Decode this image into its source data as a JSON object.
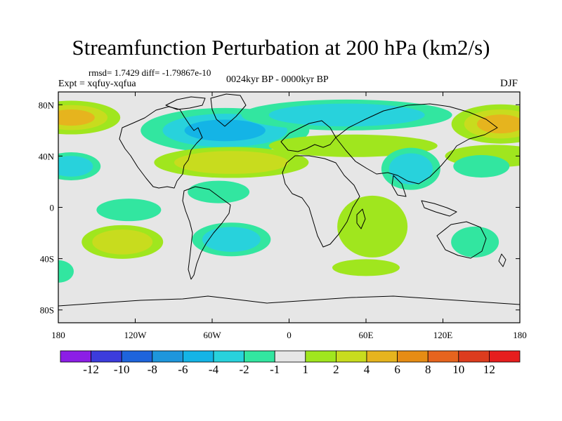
{
  "header": {
    "title": "Streamfunction Perturbation at 200 hPa (km2/s)",
    "stats": "rmsd= 1.7429 diff= -1.79867e-10",
    "experiment": "Expt = xqfuy-xqfua",
    "period": "0024kyr BP - 0000kyr BP",
    "season": "DJF"
  },
  "chart_data": {
    "type": "heatmap",
    "title": "Streamfunction Perturbation at 200 hPa (km2/s)",
    "projection": "cylindrical-equidistant",
    "xlim": [
      -180,
      180
    ],
    "ylim": [
      -90,
      90
    ],
    "x_ticks": [
      {
        "value": -180,
        "label": "180"
      },
      {
        "value": -120,
        "label": "120W"
      },
      {
        "value": -60,
        "label": "60W"
      },
      {
        "value": 0,
        "label": "0"
      },
      {
        "value": 60,
        "label": "60E"
      },
      {
        "value": 120,
        "label": "120E"
      },
      {
        "value": 180,
        "label": "180"
      }
    ],
    "y_ticks": [
      {
        "value": 80,
        "label": "80N"
      },
      {
        "value": 40,
        "label": "40N"
      },
      {
        "value": 0,
        "label": "0"
      },
      {
        "value": -40,
        "label": "40S"
      },
      {
        "value": -80,
        "label": "80S"
      }
    ],
    "colorbar": {
      "labels": [
        "-12",
        "-10",
        "-8",
        "-6",
        "-4",
        "-2",
        "-1",
        "1",
        "2",
        "4",
        "6",
        "8",
        "10",
        "12"
      ],
      "colors": [
        "#8c1ee6",
        "#3c3cdc",
        "#1e64dc",
        "#1e96dc",
        "#14b4e6",
        "#28d2dc",
        "#32e6a0",
        "#e6e6e6",
        "#a0e61e",
        "#c8dc1e",
        "#e6b41e",
        "#e68c14",
        "#e6641e",
        "#dc3c1e",
        "#e61e1e"
      ]
    },
    "fill_colors": {
      "neutral": "#e6e6e6",
      "pos1": "#a0e61e",
      "pos2": "#c8dc1e",
      "pos3": "#e6b41e",
      "pos4": "#e68c14",
      "neg1": "#32e6a0",
      "neg2": "#28d2dc",
      "neg3": "#14b4e6",
      "neg4": "#1e96dc"
    },
    "anomalies": [
      {
        "name": "north-atlantic-low",
        "sign": "negative",
        "lon": -50,
        "lat": 60,
        "peak": -6
      },
      {
        "name": "north-pacific-high",
        "sign": "positive",
        "lon": -170,
        "lat": 70,
        "peak": 6
      },
      {
        "name": "eurasia-arctic-low",
        "sign": "negative",
        "lon": 45,
        "lat": 72,
        "peak": -4
      },
      {
        "name": "east-asia-arctic-high",
        "sign": "positive",
        "lon": 165,
        "lat": 65,
        "peak": 6
      },
      {
        "name": "subtropical-atlantic-high",
        "sign": "positive",
        "lon": -45,
        "lat": 35,
        "peak": 4
      },
      {
        "name": "eurasia-midlat-high",
        "sign": "positive",
        "lon": 50,
        "lat": 48,
        "peak": 2
      },
      {
        "name": "west-pacific-midlat-high",
        "sign": "positive",
        "lon": 160,
        "lat": 40,
        "peak": 2
      },
      {
        "name": "east-pacific-low",
        "sign": "negative",
        "lon": -170,
        "lat": 32,
        "peak": -4
      },
      {
        "name": "tibet-low",
        "sign": "negative",
        "lon": 95,
        "lat": 30,
        "peak": -4
      },
      {
        "name": "west-pacific-low",
        "sign": "negative",
        "lon": 150,
        "lat": 32,
        "peak": -2
      },
      {
        "name": "south-america-low",
        "sign": "negative",
        "lon": -45,
        "lat": -25,
        "peak": -4
      },
      {
        "name": "tropical-atlantic-low",
        "sign": "negative",
        "lon": -55,
        "lat": 12,
        "peak": -2
      },
      {
        "name": "east-pacific-tropical-low",
        "sign": "negative",
        "lon": -125,
        "lat": -2,
        "peak": -2
      },
      {
        "name": "south-pacific-high",
        "sign": "positive",
        "lon": -130,
        "lat": -27,
        "peak": 4
      },
      {
        "name": "africa-high",
        "sign": "positive",
        "lon": 65,
        "lat": -15,
        "peak": 2
      },
      {
        "name": "australia-low",
        "sign": "negative",
        "lon": 145,
        "lat": -27,
        "peak": -2
      },
      {
        "name": "southern-ocean-high",
        "sign": "positive",
        "lon": 60,
        "lat": -47,
        "peak": 1
      },
      {
        "name": "southern-pacific-low",
        "sign": "negative",
        "lon": -180,
        "lat": -50,
        "peak": -2
      }
    ]
  }
}
